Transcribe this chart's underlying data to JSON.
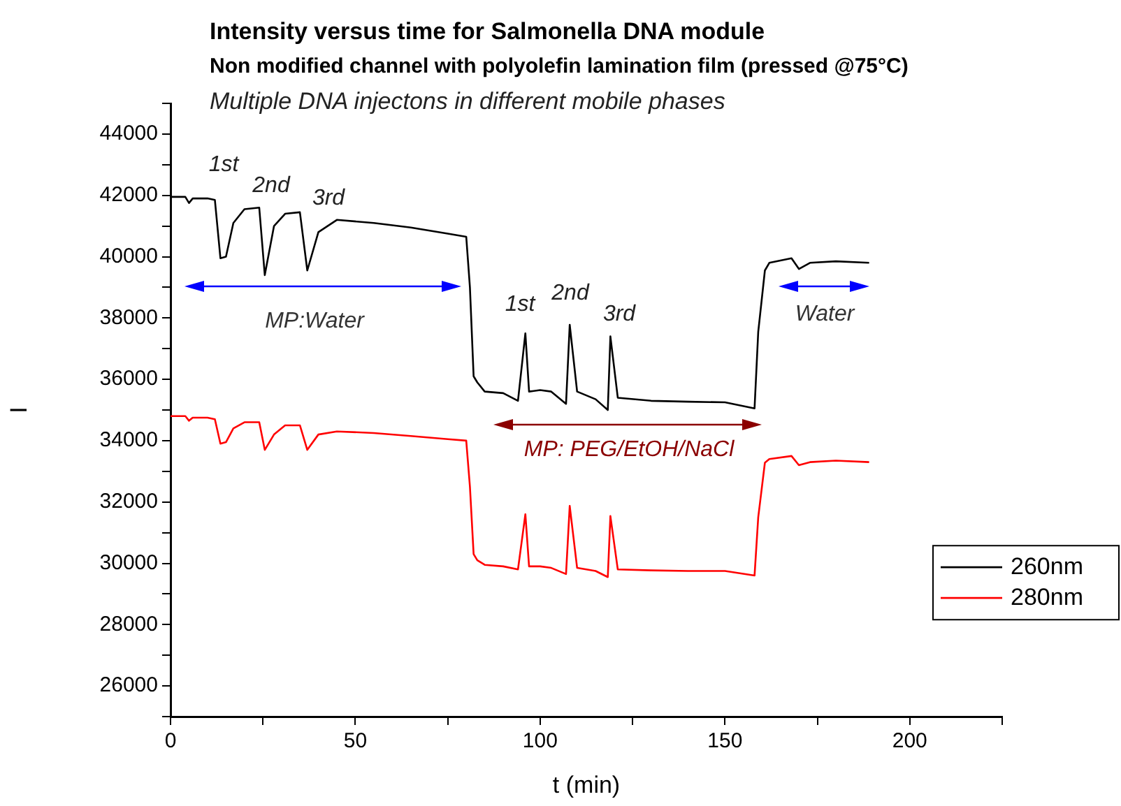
{
  "chart_data": {
    "type": "line",
    "title": "Intensity versus time for Salmonella DNA module",
    "subtitle": "Non modified channel with polyolefin lamination film (pressed @75°C)",
    "xlabel": "t (min)",
    "ylabel": "I",
    "annotations": [
      "Multiple DNA injectons in different mobile phases",
      "1st",
      "2nd",
      "3rd",
      "1st",
      "2nd",
      "3rd",
      "MP:Water",
      "MP: PEG/EtOH/NaCl",
      "Water"
    ],
    "series": [
      {
        "name": "260nm",
        "color": "#000000",
        "x": [
          0,
          4,
          5,
          6,
          10,
          12,
          13.5,
          15,
          17,
          20,
          24,
          25.5,
          28,
          31,
          35,
          37,
          40,
          45,
          55,
          65,
          75,
          80,
          81,
          82,
          83,
          85,
          90,
          94,
          96,
          97,
          100,
          103,
          107,
          108,
          110,
          115,
          118.3,
          119,
          121,
          130,
          140,
          150,
          158,
          159,
          160.8,
          162,
          168,
          170,
          173,
          180,
          189
        ],
        "values": [
          41950,
          41950,
          41750,
          41900,
          41900,
          41850,
          39950,
          40000,
          41100,
          41550,
          41600,
          39400,
          41000,
          41400,
          41450,
          39550,
          40800,
          41200,
          41100,
          40950,
          40750,
          40650,
          39000,
          36100,
          35900,
          35600,
          35550,
          35300,
          37500,
          35600,
          35650,
          35600,
          35200,
          37780,
          35600,
          35350,
          35000,
          37400,
          35400,
          35300,
          35270,
          35250,
          35050,
          37550,
          39550,
          39800,
          39950,
          39600,
          39800,
          39850,
          39800
        ]
      },
      {
        "name": "280nm",
        "color": "#ff0000",
        "x": [
          0,
          4,
          5,
          6,
          10,
          12,
          13.5,
          15,
          17,
          20,
          24,
          25.5,
          28,
          31,
          35,
          37,
          40,
          45,
          55,
          65,
          75,
          80,
          81,
          82,
          83,
          85,
          90,
          94,
          96,
          97,
          100,
          103,
          107,
          108,
          110,
          115,
          118.3,
          119,
          121,
          130,
          140,
          150,
          158,
          159,
          160.8,
          162,
          168,
          170,
          173,
          180,
          189
        ],
        "values": [
          34800,
          34800,
          34650,
          34750,
          34750,
          34700,
          33900,
          33950,
          34400,
          34600,
          34600,
          33700,
          34200,
          34500,
          34500,
          33700,
          34200,
          34300,
          34250,
          34150,
          34050,
          34000,
          32500,
          30300,
          30100,
          29950,
          29900,
          29800,
          31600,
          29900,
          29900,
          29850,
          29650,
          31870,
          29850,
          29750,
          29550,
          31540,
          29800,
          29770,
          29750,
          29750,
          29600,
          31500,
          33280,
          33400,
          33500,
          33200,
          33300,
          33350,
          33300
        ]
      }
    ],
    "xlim": [
      0,
      225
    ],
    "xticks": [
      0,
      {
        "value": 25,
        "label": null
      },
      50,
      {
        "value": 75,
        "label": null
      },
      100,
      {
        "value": 125,
        "label": null
      },
      150,
      {
        "value": 175,
        "label": null
      },
      200,
      {
        "value": 225,
        "label": null
      }
    ],
    "ylim": [
      25000,
      45000
    ],
    "yticks": [
      {
        "value": 25000,
        "label": null
      },
      26000,
      {
        "value": 27000,
        "label": null
      },
      28000,
      {
        "value": 29000,
        "label": null
      },
      30000,
      {
        "value": 31000,
        "label": null
      },
      32000,
      {
        "value": 33000,
        "label": null
      },
      34000,
      {
        "value": 35000,
        "label": null
      },
      36000,
      {
        "value": 37000,
        "label": null
      },
      38000,
      {
        "value": 39000,
        "label": null
      },
      40000,
      {
        "value": 41000,
        "label": null
      },
      42000,
      {
        "value": 43000,
        "label": null
      },
      44000,
      {
        "value": 45000,
        "label": null
      }
    ],
    "grid": false,
    "legend": "bottom right"
  }
}
